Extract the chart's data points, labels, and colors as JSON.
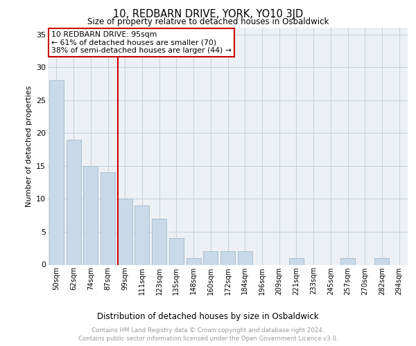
{
  "title": "10, REDBARN DRIVE, YORK, YO10 3JD",
  "subtitle": "Size of property relative to detached houses in Osbaldwick",
  "xlabel": "Distribution of detached houses by size in Osbaldwick",
  "ylabel": "Number of detached properties",
  "categories": [
    "50sqm",
    "62sqm",
    "74sqm",
    "87sqm",
    "99sqm",
    "111sqm",
    "123sqm",
    "135sqm",
    "148sqm",
    "160sqm",
    "172sqm",
    "184sqm",
    "196sqm",
    "209sqm",
    "221sqm",
    "233sqm",
    "245sqm",
    "257sqm",
    "270sqm",
    "282sqm",
    "294sqm"
  ],
  "values": [
    28,
    19,
    15,
    14,
    10,
    9,
    7,
    4,
    1,
    2,
    2,
    2,
    0,
    0,
    1,
    0,
    0,
    1,
    0,
    1,
    0
  ],
  "bar_color": "#c9d9e8",
  "bar_edge_color": "#a8bfcf",
  "vline_index": 4,
  "vline_color": "#cc0000",
  "annotation_line1": "10 REDBARN DRIVE: 95sqm",
  "annotation_line2": "← 61% of detached houses are smaller (70)",
  "annotation_line3": "38% of semi-detached houses are larger (44) →",
  "annotation_box_color": "#ffffff",
  "annotation_box_edge_color": "#cc0000",
  "ylim": [
    0,
    36
  ],
  "yticks": [
    0,
    5,
    10,
    15,
    20,
    25,
    30,
    35
  ],
  "grid_color": "#c8d4dc",
  "plot_bg_color": "#edf1f5",
  "footnote": "Contains HM Land Registry data © Crown copyright and database right 2024.\nContains public sector information licensed under the Open Government Licence v3.0."
}
